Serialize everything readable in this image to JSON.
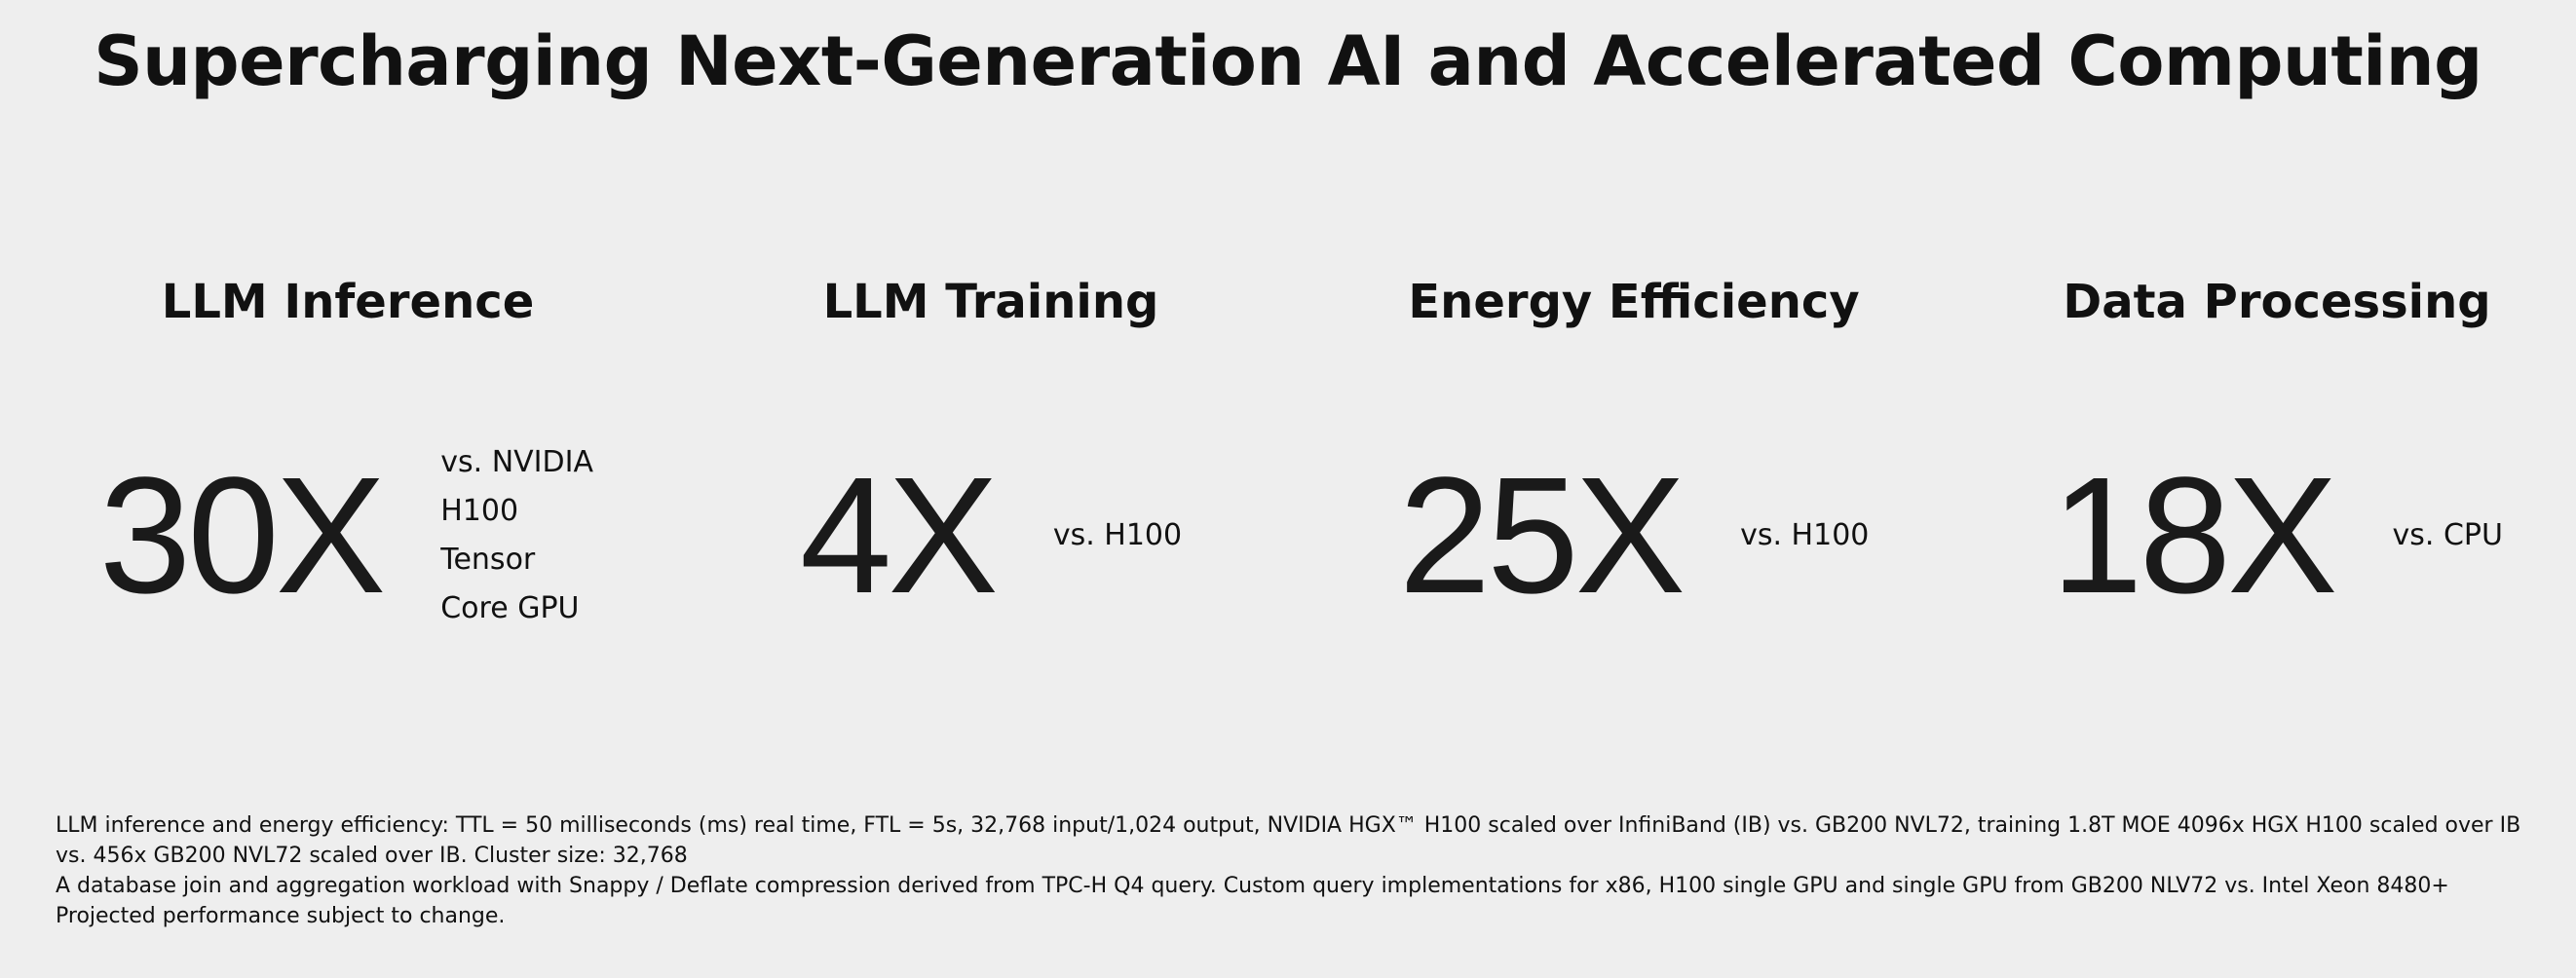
{
  "title": "Supercharging Next-Generation AI and Accelerated Computing",
  "stats": [
    {
      "heading": "LLM Inference",
      "value": "30X",
      "comparison": "vs. NVIDIA H100 Tensor Core GPU"
    },
    {
      "heading": "LLM Training",
      "value": "4X",
      "comparison": "vs. H100"
    },
    {
      "heading": "Energy Efficiency",
      "value": "25X",
      "comparison": "vs. H100"
    },
    {
      "heading": "Data Processing",
      "value": "18X",
      "comparison": "vs. CPU"
    }
  ],
  "footnotes": [
    "LLM inference and energy efficiency: TTL = 50 milliseconds (ms) real time, FTL = 5s, 32,768 input/1,024 output, NVIDIA HGX™ H100 scaled over InfiniBand (IB) vs. GB200 NVL72, training 1.8T MOE 4096x HGX H100 scaled over IB vs. 456x GB200 NVL72 scaled over IB. Cluster size: 32,768",
    "A database join and aggregation workload with Snappy / Deflate compression derived from TPC-H Q4 query. Custom query implementations for x86, H100 single GPU and single GPU from GB200 NLV72 vs. Intel Xeon 8480+",
    "Projected performance subject to change."
  ]
}
